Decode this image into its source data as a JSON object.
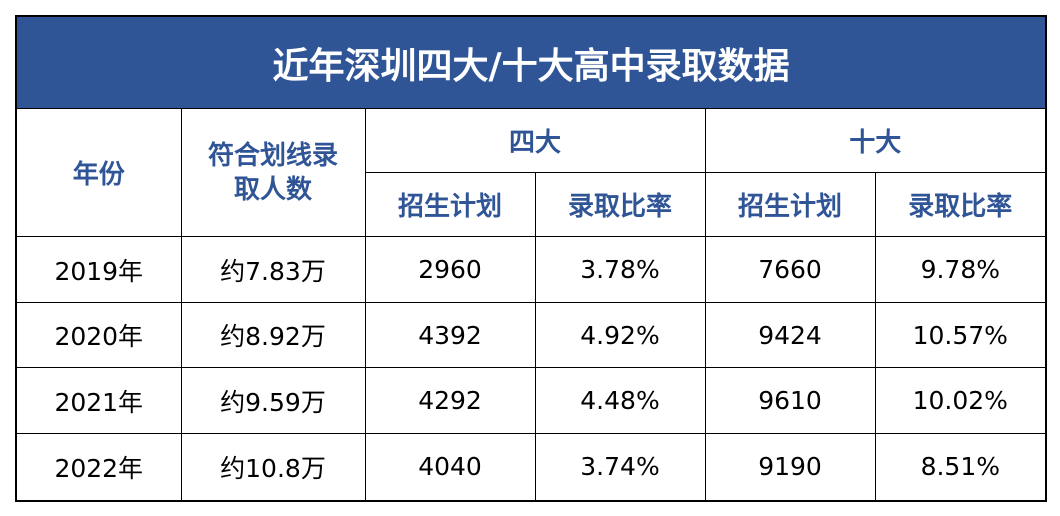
{
  "title": "近年深圳四大/十大高中录取数据",
  "header": {
    "year": "年份",
    "applicants": "符合划线录取人数",
    "groups": [
      {
        "label": "四大",
        "columns": [
          "招生计划",
          "录取比率"
        ]
      },
      {
        "label": "十大",
        "columns": [
          "招生计划",
          "录取比率"
        ]
      }
    ]
  },
  "table": {
    "rows": [
      [
        "2019年",
        "约7.83万",
        "2960",
        "3.78%",
        "7660",
        "9.78%"
      ],
      [
        "2020年",
        "约8.92万",
        "4392",
        "4.92%",
        "9424",
        "10.57%"
      ],
      [
        "2021年",
        "约9.59万",
        "4292",
        "4.48%",
        "9610",
        "10.02%"
      ],
      [
        "2022年",
        "约10.8万",
        "4040",
        "3.74%",
        "9190",
        "8.51%"
      ]
    ]
  }
}
